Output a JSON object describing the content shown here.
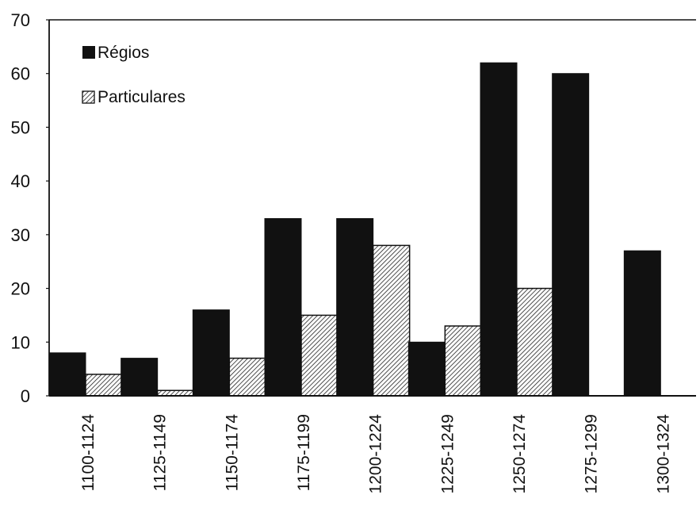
{
  "chart_data": {
    "type": "bar",
    "categories": [
      "1100-1124",
      "1125-1149",
      "1150-1174",
      "1175-1199",
      "1200-1224",
      "1225-1249",
      "1250-1274",
      "1275-1299",
      "1300-1324"
    ],
    "series": [
      {
        "name": "Régios",
        "values": [
          8,
          7,
          16,
          33,
          33,
          10,
          62,
          60,
          27
        ],
        "fill": "solid",
        "color": "#111111"
      },
      {
        "name": "Particulares",
        "values": [
          4,
          1,
          7,
          15,
          28,
          13,
          20,
          0,
          0
        ],
        "fill": "hatched",
        "color": "#111111"
      }
    ],
    "ylim": [
      0,
      70
    ],
    "yticks": [
      0,
      10,
      20,
      30,
      40,
      50,
      60,
      70
    ],
    "title": "",
    "xlabel": "",
    "ylabel": "",
    "legend_position": "top-left",
    "grid": false
  }
}
